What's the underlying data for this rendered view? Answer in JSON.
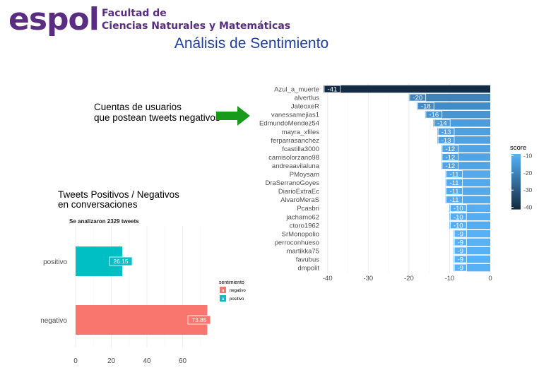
{
  "header": {
    "logo_text": "espol",
    "faculty_line1": "Facultad de",
    "faculty_line2": "Ciencias Naturales y Matemáticas",
    "title": "Análisis de Sentimiento"
  },
  "annotation": {
    "line1": "Cuentas de usuarios",
    "line2": "que postean tweets negativos"
  },
  "left_chart_header": {
    "title_line1": "Tweets Positivos / Negativos",
    "title_line2": "en conversaciones",
    "subtitle": "Se analizaron 2329 tweets"
  },
  "colors": {
    "brand": "#5a2d82",
    "title_blue": "#1f3f9c",
    "positivo": "#00bfc4",
    "negativo": "#f8766d",
    "arrow": "#1a9a1a",
    "score_low": "#132b43",
    "score_high": "#56b1f7"
  },
  "chart_data": [
    {
      "type": "bar",
      "orientation": "horizontal",
      "categories": [
        "Azul_a_muerte",
        "alvertlus",
        "JateoxeR",
        "vanessamejias1",
        "EdmundoMendez54",
        "mayra_xfiles",
        "ferparrasanchez",
        "fcastilla3000",
        "camisolorzano98",
        "andreaavilaluna",
        "PMoysam",
        "DraSerranoGoyes",
        "DiarioExtraEc",
        "AlvaroMeraS",
        "Pcasbri",
        "jachamo62",
        "ctoro1962",
        "SrMonopolio",
        "perroconhueso",
        "martikka75",
        "favubus",
        "dmpolit"
      ],
      "values": [
        -41,
        -20,
        -18,
        -16,
        -14,
        -13,
        -13,
        -12,
        -12,
        -12,
        -11,
        -11,
        -11,
        -11,
        -10,
        -10,
        -10,
        -9,
        -9,
        -9,
        -9,
        -9
      ],
      "xlim": [
        -41,
        0
      ],
      "x_ticks": [
        -40,
        -30,
        -20,
        -10,
        0
      ],
      "legend_title": "score",
      "legend_ticks": [
        -10,
        -20,
        -30,
        -40
      ],
      "color_range": [
        -41,
        -9
      ],
      "legend_placement": "right",
      "grid": true
    },
    {
      "type": "bar",
      "orientation": "horizontal",
      "categories": [
        "positivo",
        "negativo"
      ],
      "values": [
        26.15,
        73.85
      ],
      "value_labels": [
        "26.15",
        "73.85"
      ],
      "xlim": [
        0,
        75
      ],
      "x_ticks": [
        0,
        20,
        40,
        60
      ],
      "legend_title": "sentimiento",
      "legend_entries": [
        "negativo",
        "positivo"
      ],
      "legend_key_letter": "a",
      "legend_placement": "right",
      "grid": true
    }
  ]
}
